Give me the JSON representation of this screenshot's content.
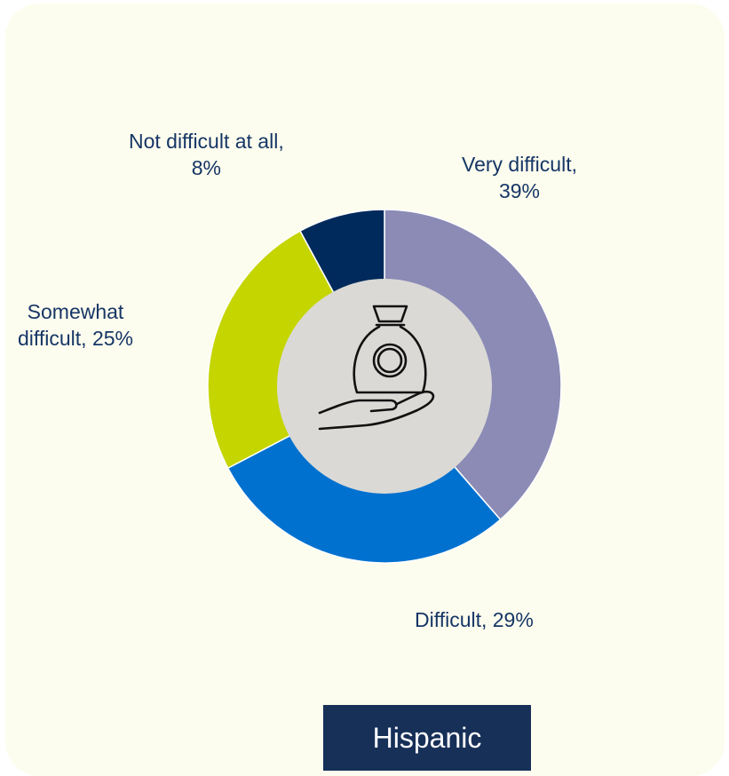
{
  "chart_data": {
    "type": "pie",
    "style": "donut",
    "categories": [
      "Very difficult",
      "Difficult",
      "Somewhat difficult",
      "Not difficult at all"
    ],
    "values": [
      39,
      29,
      25,
      8
    ],
    "colors": [
      "#8b8bb6",
      "#0171d0",
      "#c5d500",
      "#002a5b"
    ],
    "center_fill": "#dad9d5",
    "center_icon": "money-bag-in-hand-icon",
    "slice_labels": [
      {
        "name": "Very difficult,",
        "value": "39%"
      },
      {
        "name": "Difficult, 29%",
        "value": ""
      },
      {
        "name": "Somewhat",
        "value": "difficult, 25%"
      },
      {
        "name": "Not difficult at all,",
        "value": "8%"
      }
    ],
    "group_label": "Hispanic"
  },
  "colors": {
    "card_background": "#fcfdee",
    "label_text": "#173666",
    "badge_background": "#163058"
  }
}
